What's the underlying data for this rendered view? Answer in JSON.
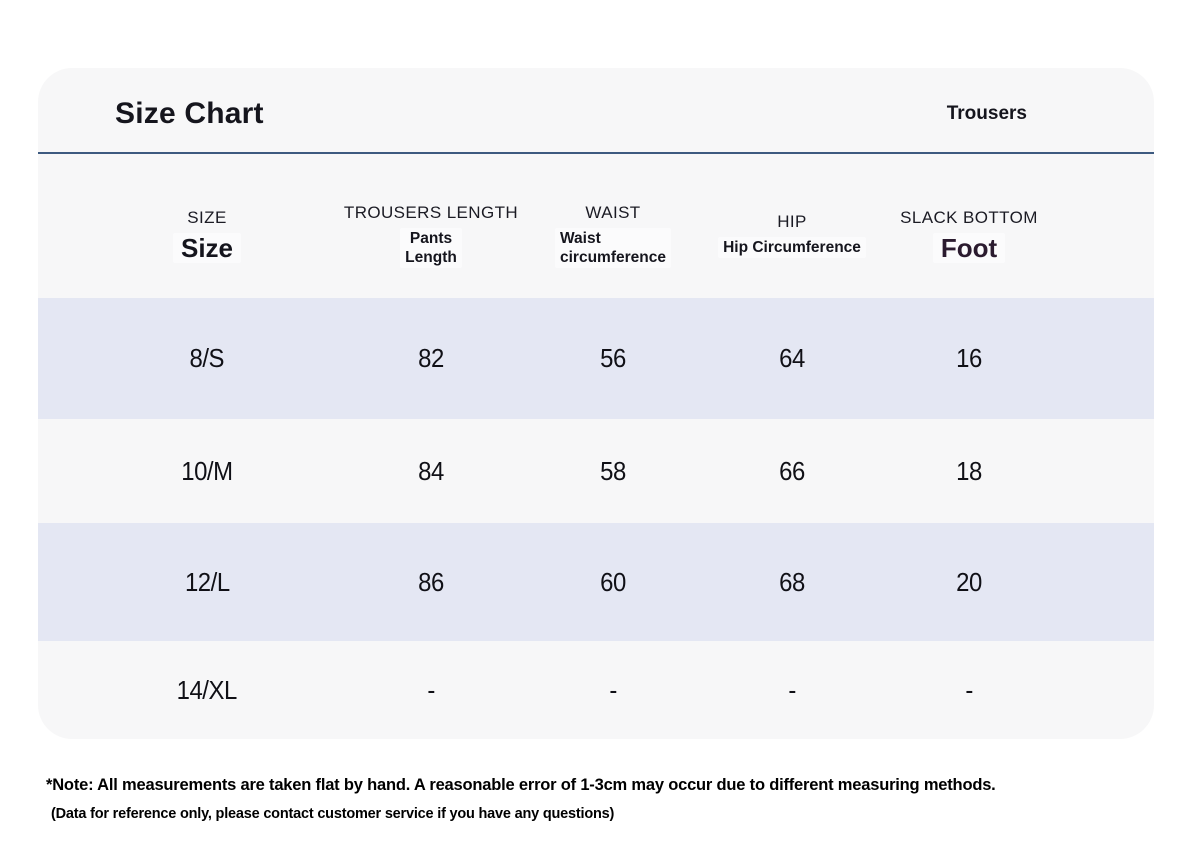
{
  "header": {
    "title": "Size Chart",
    "product_type": "Trousers"
  },
  "table": {
    "columns": [
      {
        "label": "SIZE",
        "sub1": "Size"
      },
      {
        "label": "TROUSERS LENGTH",
        "sub1": "Pants",
        "sub2": "Length"
      },
      {
        "label": "WAIST",
        "sub1": "Waist",
        "sub2": "circumference"
      },
      {
        "label": "HIP",
        "sub1": "Hip Circumference"
      },
      {
        "label": "SLACK BOTTOM",
        "sub1": "Foot"
      }
    ],
    "rows": [
      {
        "size": "8/S",
        "trousers_length": "82",
        "waist": "56",
        "hip": "64",
        "slack_bottom": "16"
      },
      {
        "size": "10/M",
        "trousers_length": "84",
        "waist": "58",
        "hip": "66",
        "slack_bottom": "18"
      },
      {
        "size": "12/L",
        "trousers_length": "86",
        "waist": "60",
        "hip": "68",
        "slack_bottom": "20"
      },
      {
        "size": "14/XL",
        "trousers_length": "-",
        "waist": "-",
        "hip": "-",
        "slack_bottom": "-"
      }
    ]
  },
  "notes": {
    "line1": "*Note: All measurements are taken flat by hand. A reasonable error of 1-3cm may occur due to different measuring methods.",
    "line2": "(Data for reference only, please contact customer service if you have any questions)"
  },
  "colors": {
    "card_background": "#f7f7f8",
    "row_highlight": "#e4e7f3",
    "divider": "#3d5a80",
    "accent_text": "#2b1b2f"
  }
}
